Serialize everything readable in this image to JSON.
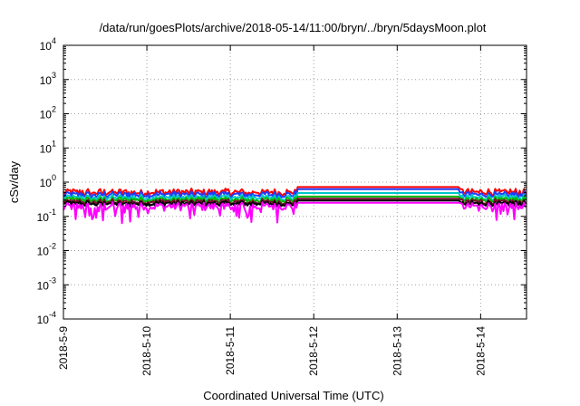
{
  "chart_data": {
    "type": "line",
    "title": "/data/run/goesPlots/archive/2018-05-14/11:00/bryn/../bryn/5daysMoon.plot",
    "xlabel": "Coordinated Universal Time (UTC)",
    "ylabel": "cSv/day",
    "x_unit": "days",
    "xlim": [
      0,
      5.55
    ],
    "x_ticks": [
      {
        "value": 0,
        "label": "2018-5-9"
      },
      {
        "value": 1,
        "label": "2018-5-10"
      },
      {
        "value": 2,
        "label": "2018-5-11"
      },
      {
        "value": 3,
        "label": "2018-5-12"
      },
      {
        "value": 4,
        "label": "2018-5-13"
      },
      {
        "value": 5,
        "label": "2018-5-14"
      }
    ],
    "y_scale": "log",
    "ylim": [
      0.0001,
      10000
    ],
    "y_ticks": [
      {
        "value": 0.0001,
        "base": "10",
        "exp": "-4"
      },
      {
        "value": 0.001,
        "base": "10",
        "exp": "-3"
      },
      {
        "value": 0.01,
        "base": "10",
        "exp": "-2"
      },
      {
        "value": 0.1,
        "base": "10",
        "exp": "-1"
      },
      {
        "value": 1,
        "base": "10",
        "exp": "0"
      },
      {
        "value": 10,
        "base": "10",
        "exp": "1"
      },
      {
        "value": 100,
        "base": "10",
        "exp": "2"
      },
      {
        "value": 1000,
        "base": "10",
        "exp": "3"
      },
      {
        "value": 10000,
        "base": "10",
        "exp": "4"
      }
    ],
    "grid": true,
    "notes": "Data gap 2018-5-11 ~19:00 to 2018-5-13 ~18:00 rendered as flat lines.",
    "series": [
      {
        "color": "#ff0000",
        "base": 0.52,
        "noise": 0.22,
        "flat": 0.72
      },
      {
        "color": "#1e3cff",
        "base": 0.44,
        "noise": 0.2,
        "flat": 0.62
      },
      {
        "color": "#00c8c8",
        "base": 0.36,
        "noise": 0.18,
        "flat": 0.48
      },
      {
        "color": "#00b400",
        "base": 0.31,
        "noise": 0.16,
        "flat": 0.38
      },
      {
        "color": "#7a0c2e",
        "base": 0.27,
        "noise": 0.15,
        "flat": 0.33
      },
      {
        "color": "#000000",
        "base": 0.24,
        "noise": 0.14,
        "flat": 0.29
      },
      {
        "color": "#ff00ff",
        "base": 0.2,
        "noise": 0.25,
        "flat": 0.25
      }
    ],
    "gap": [
      2.8,
      4.75
    ]
  }
}
